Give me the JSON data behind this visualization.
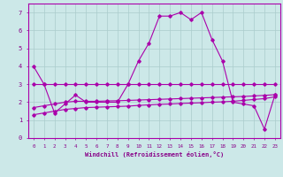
{
  "x": [
    0,
    1,
    2,
    3,
    4,
    5,
    6,
    7,
    8,
    9,
    10,
    11,
    12,
    13,
    14,
    15,
    16,
    17,
    18,
    19,
    20,
    21,
    22,
    23
  ],
  "line_main": [
    4.0,
    3.0,
    1.4,
    1.9,
    2.4,
    2.0,
    2.0,
    2.0,
    2.0,
    3.0,
    4.3,
    5.3,
    6.8,
    6.8,
    7.0,
    6.6,
    7.0,
    5.5,
    4.3,
    2.0,
    1.9,
    1.8,
    0.5,
    2.4
  ],
  "line_flat": [
    3.0,
    3.0,
    3.0,
    3.0,
    3.0,
    3.0,
    3.0,
    3.0,
    3.0,
    3.0,
    3.0,
    3.0,
    3.0,
    3.0,
    3.0,
    3.0,
    3.0,
    3.0,
    3.0,
    3.0,
    3.0,
    3.0,
    3.0,
    3.0
  ],
  "line_slope_lo": [
    1.3,
    1.4,
    1.5,
    1.6,
    1.65,
    1.7,
    1.72,
    1.74,
    1.76,
    1.78,
    1.82,
    1.85,
    1.88,
    1.9,
    1.93,
    1.95,
    1.97,
    2.0,
    2.02,
    2.05,
    2.1,
    2.15,
    2.2,
    2.3
  ],
  "line_slope_hi": [
    1.7,
    1.8,
    1.9,
    2.0,
    2.05,
    2.05,
    2.05,
    2.07,
    2.08,
    2.1,
    2.12,
    2.14,
    2.16,
    2.18,
    2.2,
    2.22,
    2.24,
    2.26,
    2.28,
    2.3,
    2.32,
    2.35,
    2.38,
    2.42
  ],
  "bg_color": "#cce8e8",
  "line_color": "#aa00aa",
  "grid_color": "#aacccc",
  "xlabel": "Windchill (Refroidissement éolien,°C)",
  "xlabel_color": "#880088",
  "ylim": [
    0,
    7.5
  ],
  "xlim": [
    -0.5,
    23.5
  ]
}
